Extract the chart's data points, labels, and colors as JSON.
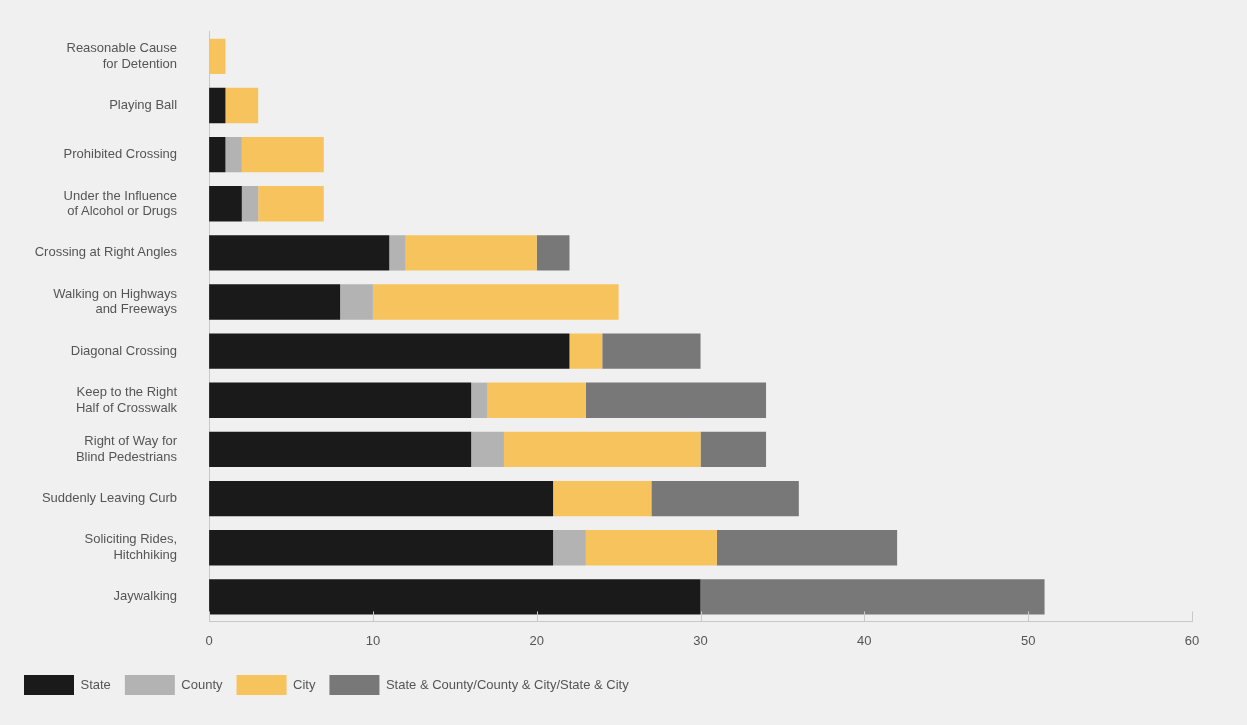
{
  "chart_data": {
    "type": "bar",
    "orientation": "horizontal",
    "stacked": true,
    "categories": [
      "Reasonable Cause\nfor Detention",
      "Playing Ball",
      "Prohibited Crossing",
      "Under the Influence\nof Alcohol or Drugs",
      "Crossing at Right Angles",
      "Walking on Highways\nand Freeways",
      "Diagonal Crossing",
      "Keep to the Right\nHalf of Crosswalk",
      "Right of Way for\nBlind Pedestrians",
      "Suddenly Leaving Curb",
      "Soliciting Rides,\nHitchhiking",
      "Jaywalking"
    ],
    "series": [
      {
        "name": "State",
        "color": "#1a1a1a",
        "values": [
          0,
          1,
          1,
          2,
          11,
          8,
          22,
          16,
          16,
          21,
          21,
          30
        ]
      },
      {
        "name": "County",
        "color": "#b3b3b3",
        "values": [
          0,
          0,
          1,
          1,
          1,
          2,
          0,
          1,
          2,
          0,
          2,
          0
        ]
      },
      {
        "name": "City",
        "color": "#f7c35c",
        "values": [
          1,
          2,
          5,
          4,
          8,
          15,
          2,
          6,
          12,
          6,
          8,
          0
        ]
      },
      {
        "name": "State & County/County & City/State & City",
        "color": "#787878",
        "values": [
          0,
          0,
          0,
          0,
          2,
          0,
          6,
          11,
          4,
          9,
          11,
          21
        ]
      }
    ],
    "xlim": [
      0,
      60
    ],
    "xticks": [
      0,
      10,
      20,
      30,
      40,
      50,
      60
    ],
    "grid": false,
    "legend": "bottom"
  }
}
